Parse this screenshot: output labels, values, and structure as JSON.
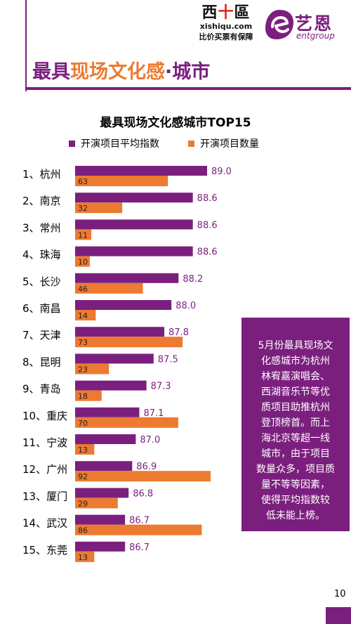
{
  "header": {
    "logo_xishiqu": {
      "prefix": "西",
      "cross": "十",
      "suffix": "區",
      "domain": "xishiqu.com",
      "tagline": "比价买票有保障"
    },
    "logo_ent": {
      "cn": "艺恩",
      "en": "entgroup"
    },
    "title": {
      "pre": "最具",
      "highlight": "现场文化感",
      "post": "·城市"
    }
  },
  "colors": {
    "primary": "#7b1f7e",
    "accent": "#ec7a31"
  },
  "chart_data": {
    "type": "bar",
    "orientation": "horizontal",
    "title": "最具现场文化感城市TOP15",
    "legend_position": "top",
    "categories": [
      "1、杭州",
      "2、南京",
      "3、常州",
      "4、珠海",
      "5、长沙",
      "6、南昌",
      "7、天津",
      "8、昆明",
      "9、青岛",
      "10、重庆",
      "11、宁波",
      "12、广州",
      "13、厦门",
      "14、武汉",
      "15、东莞"
    ],
    "series": [
      {
        "name": "开演项目平均指数",
        "color": "#7b1f7e",
        "values": [
          89.0,
          88.6,
          88.6,
          88.6,
          88.2,
          88.0,
          87.8,
          87.5,
          87.3,
          87.1,
          87.0,
          86.9,
          86.8,
          86.7,
          86.7
        ],
        "labels": [
          "89.0",
          "88.6",
          "88.6",
          "88.6",
          "88.2",
          "88.0",
          "87.8",
          "87.5",
          "87.3",
          "87.1",
          "87.0",
          "86.9",
          "86.8",
          "86.7",
          "86.7"
        ]
      },
      {
        "name": "开演项目数量",
        "color": "#ec7a31",
        "values": [
          63,
          32,
          11,
          10,
          46,
          14,
          73,
          23,
          18,
          70,
          13,
          92,
          29,
          86,
          13
        ],
        "labels": [
          "63",
          "32",
          "11",
          "10",
          "46",
          "14",
          "73",
          "23",
          "18",
          "70",
          "13",
          "92",
          "29",
          "86",
          "13"
        ]
      }
    ]
  },
  "note": {
    "lines": [
      "5月份最具现场文",
      "化感城市为杭州",
      "林宥嘉演唱会、",
      "西湖音乐节等优",
      "质项目助推杭州",
      "登顶榜首。而上",
      "海北京等超一线",
      "城市，由于项目",
      "数量众多，项目质",
      "量不等等因素，",
      "使得平均指数较",
      "低未能上榜。"
    ]
  },
  "page_number": "10"
}
